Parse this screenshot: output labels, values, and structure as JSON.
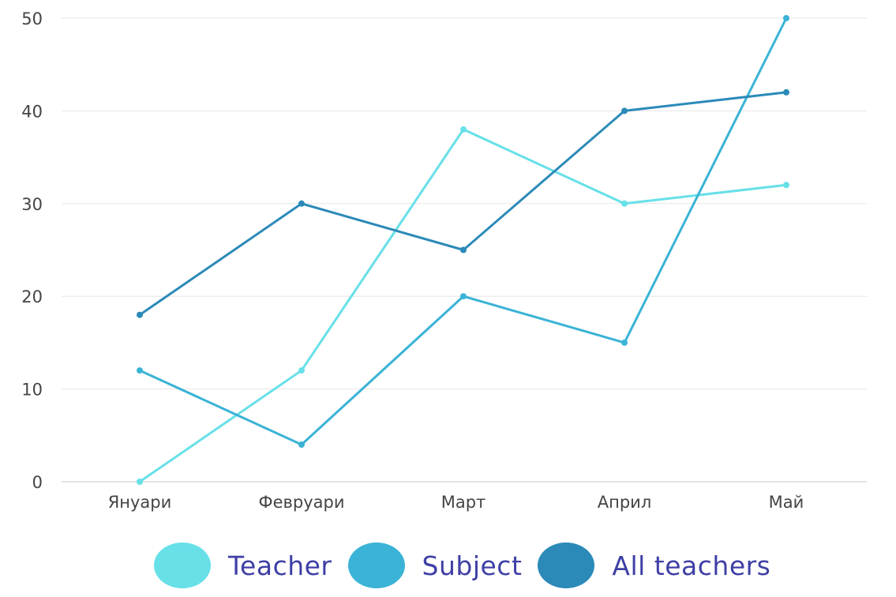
{
  "chart_data": {
    "type": "line",
    "categories": [
      "Януари",
      "Февруари",
      "Март",
      "Април",
      "Май"
    ],
    "ylim": [
      0,
      50
    ],
    "yticks": [
      0,
      10,
      20,
      30,
      40,
      50
    ],
    "grid": true,
    "legend_position": "bottom",
    "series": [
      {
        "name": "Teacher",
        "color": "#67e0e8",
        "values": [
          0,
          12,
          38,
          30,
          32
        ]
      },
      {
        "name": "Subject",
        "color": "#3ab3d6",
        "values": [
          12,
          4,
          20,
          15,
          50
        ]
      },
      {
        "name": "All teachers",
        "color": "#2b8ab8",
        "values": [
          18,
          30,
          25,
          40,
          42
        ]
      }
    ]
  }
}
